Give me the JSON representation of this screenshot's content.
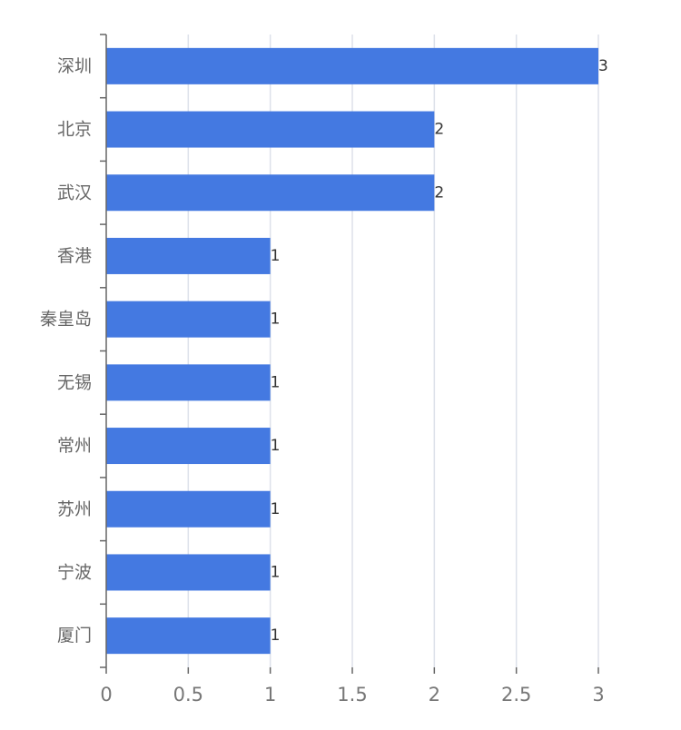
{
  "colors": {
    "bar": "#4479E1",
    "gridline": "#DDE1EA",
    "axis": "#666666",
    "category_label": "#666666",
    "tick_label": "#777777",
    "value_label": "#333333",
    "background": "#FFFFFF"
  },
  "chart_data": {
    "type": "bar",
    "orientation": "horizontal",
    "title": "",
    "xlabel": "",
    "ylabel": "",
    "categories": [
      "深圳",
      "北京",
      "武汉",
      "香港",
      "秦皇岛",
      "无锡",
      "常州",
      "苏州",
      "宁波",
      "厦门"
    ],
    "values": [
      3,
      2,
      2,
      1,
      1,
      1,
      1,
      1,
      1,
      1
    ],
    "value_labels": [
      "3",
      "2",
      "2",
      "1",
      "1",
      "1",
      "1",
      "1",
      "1",
      "1"
    ],
    "xlim": [
      0,
      3
    ],
    "x_ticks": [
      0,
      0.5,
      1,
      1.5,
      2,
      2.5,
      3
    ],
    "x_tick_labels": [
      "0",
      "0.5",
      "1",
      "1.5",
      "2",
      "2.5",
      "3"
    ],
    "grid": "vertical",
    "legend": "none",
    "data_labels": "end-of-bar"
  }
}
